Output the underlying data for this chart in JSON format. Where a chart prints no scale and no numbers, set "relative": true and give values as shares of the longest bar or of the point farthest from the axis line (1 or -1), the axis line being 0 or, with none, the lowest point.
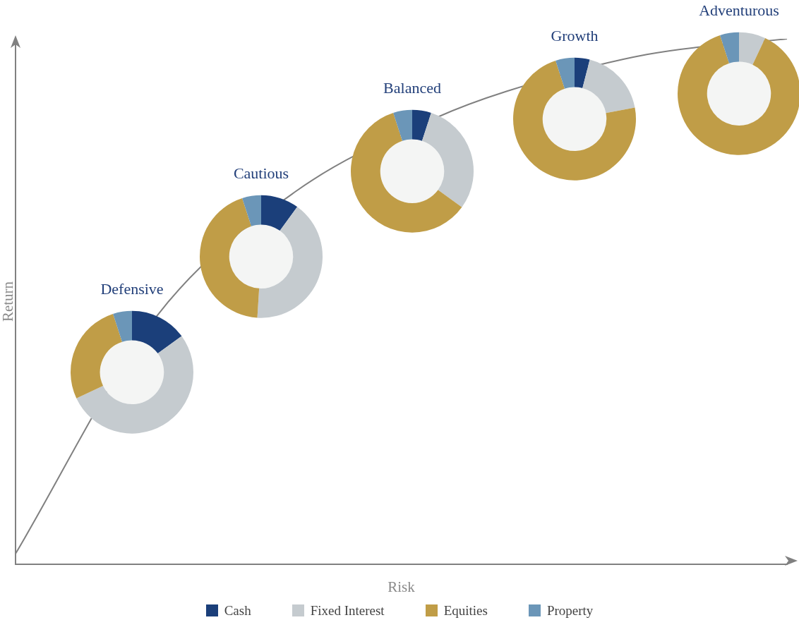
{
  "chart_data": [
    {
      "type": "line",
      "relative": true,
      "xlabel": "Risk",
      "ylabel": "Return",
      "categories": [
        null,
        null,
        null,
        null,
        null,
        null,
        null,
        null,
        null,
        null,
        null,
        null
      ],
      "grid": false,
      "legend": false,
      "marker": "none",
      "series": [
        {
          "color": "#808080",
          "values": [
            0.02,
            null,
            0.47,
            null,
            0.71,
            null,
            0.85,
            0.9,
            null,
            0.97,
            null,
            1
          ]
        }
      ]
    },
    {
      "type": "donut",
      "legend": "bottom",
      "categories": [
        "Cash",
        "Fixed Interest",
        "Equities",
        "Property"
      ],
      "colors": [
        "#1b3f7a",
        "#c5cbcf",
        "#c09d47",
        "#6b96b8"
      ],
      "series": [
        {
          "name": "Defensive",
          "values": [
            15,
            53,
            27,
            5
          ]
        },
        {
          "name": "Cautious",
          "values": [
            10,
            41,
            44,
            5
          ]
        },
        {
          "name": "Balanced",
          "values": [
            5,
            30,
            60,
            5
          ]
        },
        {
          "name": "Growth",
          "values": [
            4,
            18,
            73,
            5
          ]
        },
        {
          "name": "Adventurous",
          "values": [
            0,
            7,
            88,
            5
          ]
        }
      ]
    }
  ]
}
